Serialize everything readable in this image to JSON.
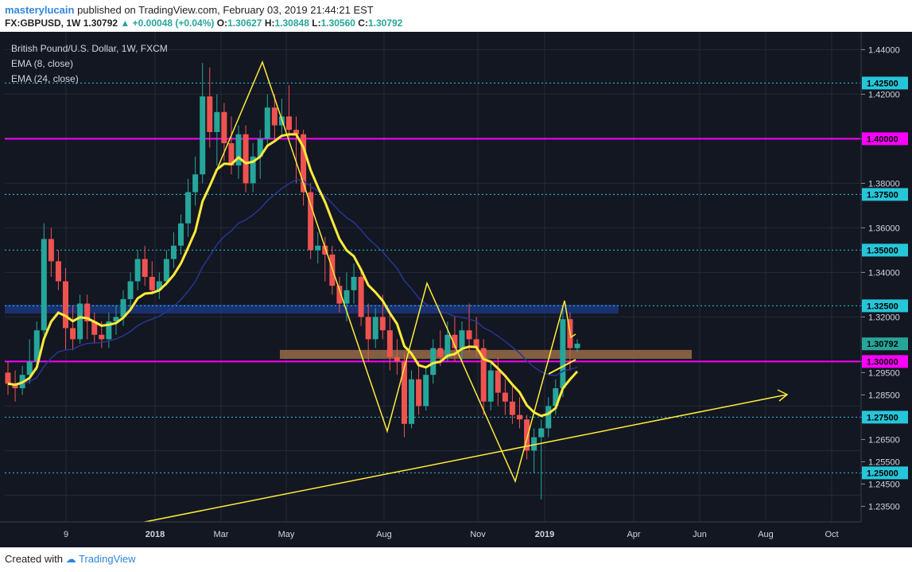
{
  "header": {
    "username": "masterylucain",
    "published_text": "published on TradingView.com, February 03, 2019 21:44:21 EST",
    "symbol": "FX:GBPUSD, 1W",
    "last": "1.30792",
    "change": "+0.00048 (+0.04%)",
    "o_label": "O:",
    "o_val": "1.30627",
    "h_label": "H:",
    "h_val": "1.30848",
    "l_label": "L:",
    "l_val": "1.30560",
    "c_label": "C:",
    "c_val": "1.30792"
  },
  "legend": {
    "title": "British Pound/U.S. Dollar, 1W, FXCM",
    "ema1": "EMA (8, close)",
    "ema2": "EMA (24, close)"
  },
  "footer": {
    "created": "Created with",
    "brand": "TradingView"
  },
  "colors": {
    "bg": "#131722",
    "up": "#26a69a",
    "down": "#ef5350",
    "ema8": "#ffeb3b",
    "ema24": "#1a237e",
    "magenta": "#ff00ff",
    "cyan": "#26c6da",
    "zone_blue": "#1e3a8a",
    "zone_brown": "#a0704a"
  },
  "chart_data": {
    "type": "candlestick",
    "y_ticks": [
      "1.44000",
      "1.42000",
      "1.40000",
      "1.38000",
      "1.37500",
      "1.36000",
      "1.35000",
      "1.34000",
      "1.32500",
      "1.32000",
      "1.30000",
      "1.29500",
      "1.28500",
      "1.27500",
      "1.26500",
      "1.25500",
      "1.25000",
      "1.24500",
      "1.23500"
    ],
    "x_ticks": [
      "9",
      "2018",
      "Mar",
      "May",
      "Aug",
      "Nov",
      "2019",
      "Apr",
      "Jun",
      "Aug",
      "Oct"
    ],
    "ylim": [
      1.228,
      1.448
    ],
    "price_labels": [
      {
        "value": 1.425,
        "label": "1.42500",
        "color": "#26c6da"
      },
      {
        "value": 1.4,
        "label": "1.40000",
        "color": "#ff00ff"
      },
      {
        "value": 1.375,
        "label": "1.37500",
        "color": "#26c6da"
      },
      {
        "value": 1.35,
        "label": "1.35000",
        "color": "#26c6da"
      },
      {
        "value": 1.325,
        "label": "1.32500",
        "color": "#26c6da"
      },
      {
        "value": 1.30792,
        "label": "1.30792",
        "color": "#26a69a"
      },
      {
        "value": 1.3,
        "label": "1.30000",
        "color": "#ff00ff"
      },
      {
        "value": 1.275,
        "label": "1.27500",
        "color": "#26c6da"
      },
      {
        "value": 1.25,
        "label": "1.25000",
        "color": "#26c6da"
      }
    ],
    "candles_ohlc": [
      [
        1.295,
        1.3,
        1.285,
        1.29
      ],
      [
        1.29,
        1.296,
        1.282,
        1.288
      ],
      [
        1.288,
        1.298,
        1.285,
        1.294
      ],
      [
        1.294,
        1.31,
        1.29,
        1.3
      ],
      [
        1.3,
        1.318,
        1.296,
        1.314
      ],
      [
        1.314,
        1.362,
        1.312,
        1.355
      ],
      [
        1.355,
        1.36,
        1.338,
        1.345
      ],
      [
        1.345,
        1.35,
        1.332,
        1.336
      ],
      [
        1.336,
        1.342,
        1.305,
        1.315
      ],
      [
        1.315,
        1.325,
        1.305,
        1.31
      ],
      [
        1.31,
        1.33,
        1.308,
        1.326
      ],
      [
        1.326,
        1.33,
        1.31,
        1.318
      ],
      [
        1.318,
        1.322,
        1.308,
        1.312
      ],
      [
        1.312,
        1.318,
        1.306,
        1.31
      ],
      [
        1.31,
        1.322,
        1.306,
        1.318
      ],
      [
        1.318,
        1.325,
        1.312,
        1.32
      ],
      [
        1.32,
        1.332,
        1.316,
        1.328
      ],
      [
        1.328,
        1.34,
        1.324,
        1.336
      ],
      [
        1.336,
        1.35,
        1.332,
        1.346
      ],
      [
        1.346,
        1.352,
        1.334,
        1.338
      ],
      [
        1.338,
        1.345,
        1.33,
        1.332
      ],
      [
        1.332,
        1.34,
        1.328,
        1.336
      ],
      [
        1.336,
        1.35,
        1.334,
        1.346
      ],
      [
        1.346,
        1.358,
        1.342,
        1.352
      ],
      [
        1.352,
        1.366,
        1.348,
        1.362
      ],
      [
        1.362,
        1.382,
        1.356,
        1.376
      ],
      [
        1.376,
        1.392,
        1.37,
        1.384
      ],
      [
        1.384,
        1.434,
        1.38,
        1.419
      ],
      [
        1.419,
        1.432,
        1.396,
        1.403
      ],
      [
        1.403,
        1.42,
        1.388,
        1.412
      ],
      [
        1.412,
        1.416,
        1.39,
        1.398
      ],
      [
        1.398,
        1.41,
        1.384,
        1.388
      ],
      [
        1.388,
        1.406,
        1.382,
        1.402
      ],
      [
        1.402,
        1.406,
        1.376,
        1.38
      ],
      [
        1.38,
        1.398,
        1.376,
        1.392
      ],
      [
        1.392,
        1.404,
        1.382,
        1.4
      ],
      [
        1.4,
        1.42,
        1.396,
        1.414
      ],
      [
        1.414,
        1.42,
        1.4,
        1.406
      ],
      [
        1.406,
        1.418,
        1.402,
        1.41
      ],
      [
        1.41,
        1.424,
        1.4,
        1.404
      ],
      [
        1.404,
        1.41,
        1.38,
        1.402
      ],
      [
        1.402,
        1.404,
        1.37,
        1.376
      ],
      [
        1.376,
        1.38,
        1.346,
        1.35
      ],
      [
        1.35,
        1.358,
        1.344,
        1.352
      ],
      [
        1.352,
        1.356,
        1.336,
        1.348
      ],
      [
        1.348,
        1.352,
        1.33,
        1.334
      ],
      [
        1.334,
        1.338,
        1.322,
        1.326
      ],
      [
        1.326,
        1.34,
        1.318,
        1.332
      ],
      [
        1.332,
        1.344,
        1.326,
        1.338
      ],
      [
        1.338,
        1.342,
        1.316,
        1.32
      ],
      [
        1.32,
        1.326,
        1.3,
        1.31
      ],
      [
        1.31,
        1.324,
        1.306,
        1.32
      ],
      [
        1.32,
        1.33,
        1.31,
        1.314
      ],
      [
        1.314,
        1.322,
        1.296,
        1.302
      ],
      [
        1.302,
        1.31,
        1.294,
        1.3
      ],
      [
        1.3,
        1.304,
        1.266,
        1.272
      ],
      [
        1.272,
        1.296,
        1.27,
        1.292
      ],
      [
        1.292,
        1.3,
        1.276,
        1.28
      ],
      [
        1.28,
        1.298,
        1.278,
        1.294
      ],
      [
        1.294,
        1.31,
        1.29,
        1.306
      ],
      [
        1.306,
        1.314,
        1.298,
        1.302
      ],
      [
        1.302,
        1.318,
        1.3,
        1.312
      ],
      [
        1.312,
        1.32,
        1.3,
        1.306
      ],
      [
        1.306,
        1.318,
        1.3,
        1.314
      ],
      [
        1.314,
        1.326,
        1.304,
        1.31
      ],
      [
        1.31,
        1.32,
        1.302,
        1.306
      ],
      [
        1.306,
        1.31,
        1.276,
        1.282
      ],
      [
        1.282,
        1.3,
        1.278,
        1.296
      ],
      [
        1.296,
        1.302,
        1.28,
        1.286
      ],
      [
        1.286,
        1.292,
        1.276,
        1.282
      ],
      [
        1.282,
        1.29,
        1.272,
        1.276
      ],
      [
        1.276,
        1.284,
        1.27,
        1.274
      ],
      [
        1.274,
        1.276,
        1.256,
        1.26
      ],
      [
        1.26,
        1.27,
        1.25,
        1.266
      ],
      [
        1.266,
        1.274,
        1.238,
        1.27
      ],
      [
        1.27,
        1.284,
        1.266,
        1.28
      ],
      [
        1.28,
        1.292,
        1.276,
        1.288
      ],
      [
        1.288,
        1.324,
        1.284,
        1.319
      ],
      [
        1.319,
        1.322,
        1.296,
        1.306
      ],
      [
        1.306,
        1.31,
        1.304,
        1.308
      ]
    ],
    "annotations": [
      "yellow zigzag pattern",
      "yellow ascending trendline with arrow",
      "blue resistance zone ~1.322-1.325",
      "brown support zone ~1.301-1.305"
    ]
  }
}
